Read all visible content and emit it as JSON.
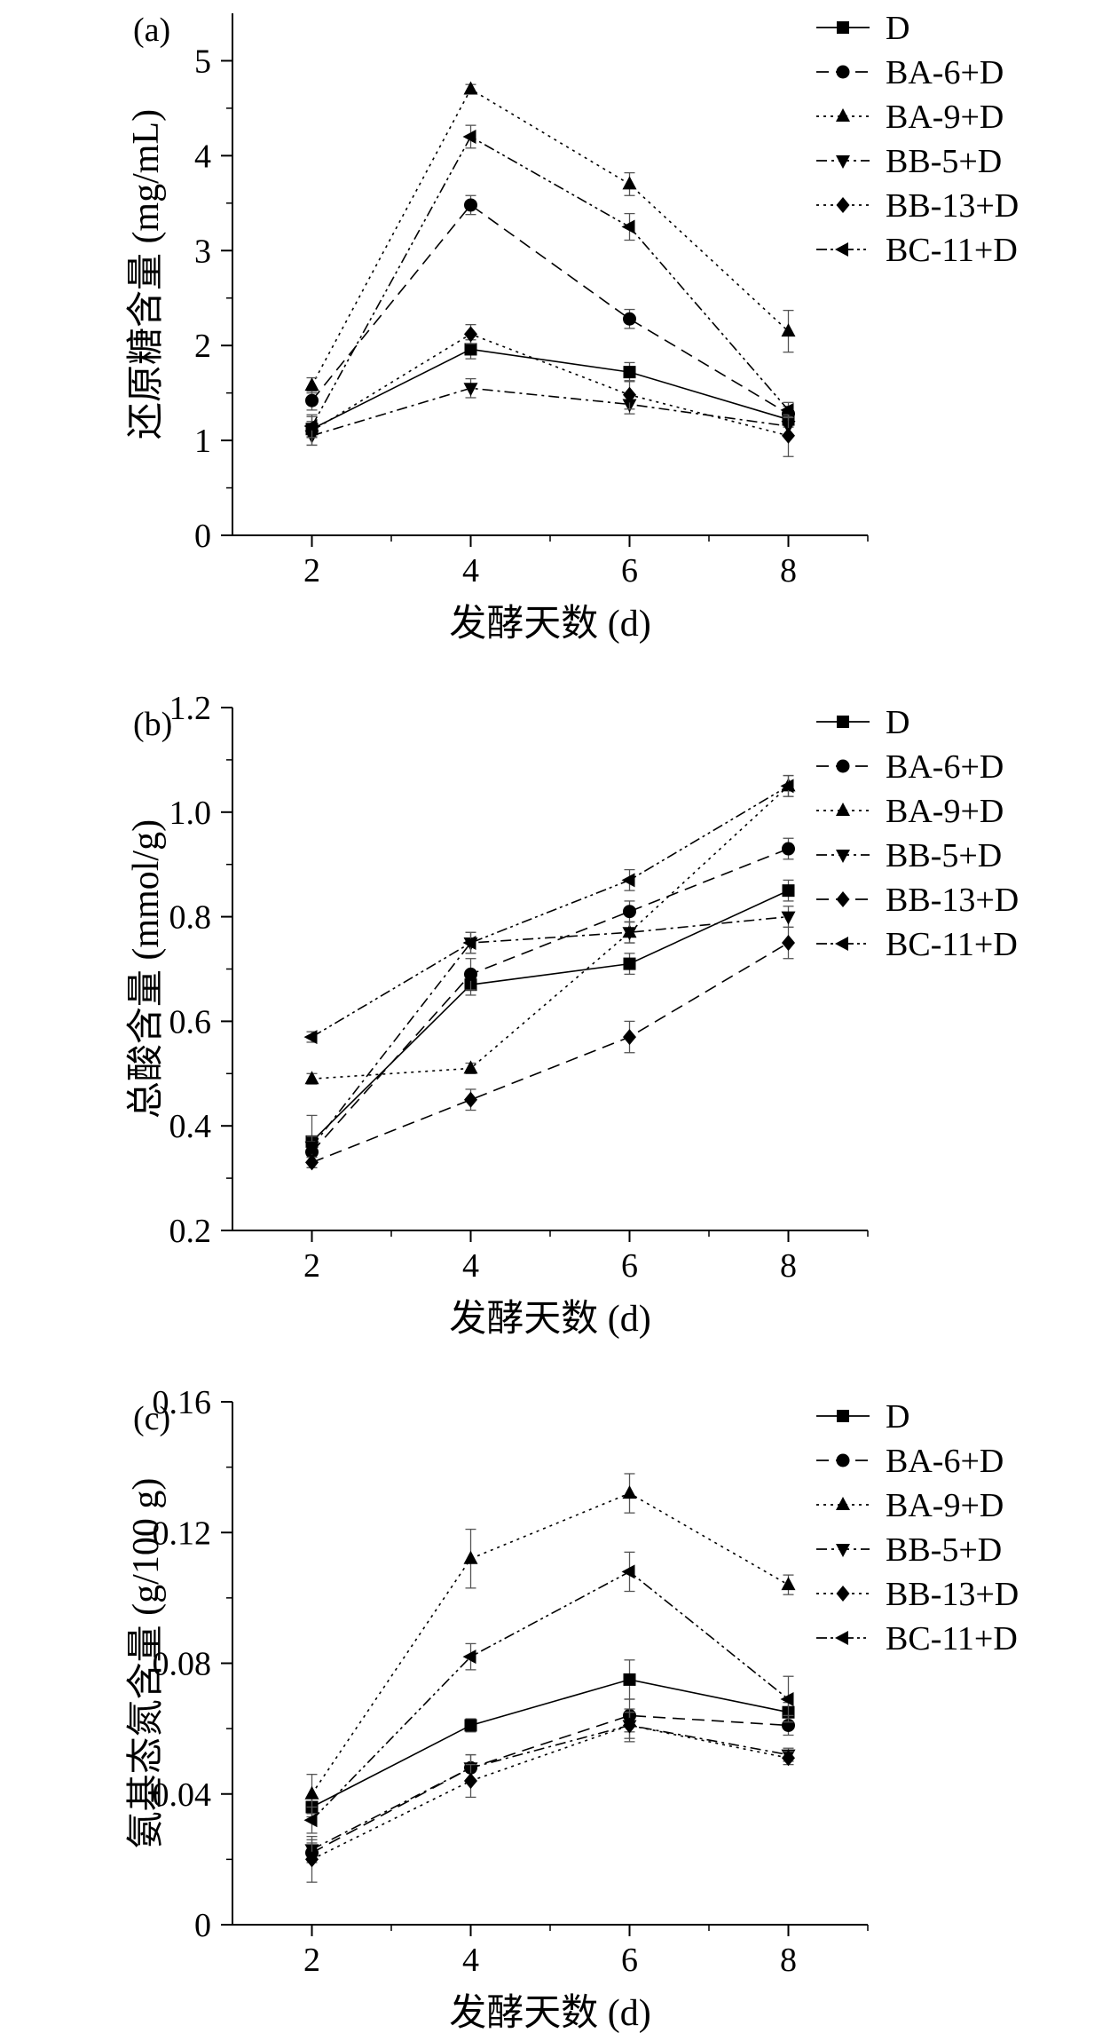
{
  "chart_data": [
    {
      "type": "line",
      "panel_label": "(a)",
      "xlabel": "发酵天数 (d)",
      "ylabel": "还原糖含量 (mg/mL)",
      "x": [
        2,
        4,
        6,
        8
      ],
      "xticks": [
        "2",
        "4",
        "6",
        "8"
      ],
      "xlim": [
        1,
        9
      ],
      "ylim": [
        0,
        5.5
      ],
      "yticks": [
        0,
        1,
        2,
        3,
        4,
        5
      ],
      "ytick_labels": [
        "0",
        "1",
        "2",
        "3",
        "4",
        "5"
      ],
      "legend_position": "top-right",
      "series": [
        {
          "name": "D",
          "marker": "square",
          "dash": "solid",
          "values": [
            1.12,
            1.96,
            1.72,
            1.22
          ],
          "errors": [
            0.08,
            0.1,
            0.1,
            0.08
          ]
        },
        {
          "name": "BA-6+D",
          "marker": "circle",
          "dash": "dashed",
          "values": [
            1.42,
            3.48,
            2.28,
            1.28
          ],
          "errors": [
            0.1,
            0.1,
            0.1,
            0.08
          ]
        },
        {
          "name": "BA-9+D",
          "marker": "triangle-up",
          "dash": "dotted",
          "values": [
            1.58,
            4.7,
            3.7,
            2.15
          ],
          "errors": [
            0.08,
            0.05,
            0.12,
            0.22
          ]
        },
        {
          "name": "BB-5+D",
          "marker": "triangle-down",
          "dash": "dashdot",
          "values": [
            1.05,
            1.55,
            1.38,
            1.15
          ],
          "errors": [
            0.1,
            0.1,
            0.1,
            0.1
          ]
        },
        {
          "name": "BB-13+D",
          "marker": "diamond",
          "dash": "dotted",
          "values": [
            1.1,
            2.12,
            1.48,
            1.05
          ],
          "errors": [
            0.15,
            0.1,
            0.15,
            0.22
          ]
        },
        {
          "name": "BC-11+D",
          "marker": "triangle-left",
          "dash": "dashdotdot",
          "values": [
            1.15,
            4.2,
            3.25,
            1.32
          ],
          "errors": [
            0.12,
            0.12,
            0.14,
            0.08
          ]
        }
      ]
    },
    {
      "type": "line",
      "panel_label": "(b)",
      "xlabel": "发酵天数 (d)",
      "ylabel": "总酸含量 (mmol/g)",
      "x": [
        2,
        4,
        6,
        8
      ],
      "xticks": [
        "2",
        "4",
        "6",
        "8"
      ],
      "xlim": [
        1,
        9
      ],
      "ylim": [
        0.2,
        1.2
      ],
      "yticks": [
        0.2,
        0.4,
        0.6,
        0.8,
        1.0,
        1.2
      ],
      "ytick_labels": [
        "0.2",
        "0.4",
        "0.6",
        "0.8",
        "1.0",
        "1.2"
      ],
      "legend_position": "top-right",
      "series": [
        {
          "name": "D",
          "marker": "square",
          "dash": "solid",
          "values": [
            0.37,
            0.67,
            0.71,
            0.85
          ],
          "errors": [
            0.05,
            0.02,
            0.02,
            0.02
          ]
        },
        {
          "name": "BA-6+D",
          "marker": "circle",
          "dash": "dashed",
          "values": [
            0.35,
            0.69,
            0.81,
            0.93
          ],
          "errors": [
            0.02,
            0.03,
            0.02,
            0.02
          ]
        },
        {
          "name": "BA-9+D",
          "marker": "triangle-up",
          "dash": "dotted",
          "values": [
            0.49,
            0.51,
            0.77,
            1.05
          ],
          "errors": [
            0.01,
            0.01,
            0.02,
            0.02
          ]
        },
        {
          "name": "BB-5+D",
          "marker": "triangle-down",
          "dash": "dashdot",
          "values": [
            0.36,
            0.75,
            0.77,
            0.8
          ],
          "errors": [
            0.02,
            0.02,
            0.02,
            0.02
          ]
        },
        {
          "name": "BB-13+D",
          "marker": "diamond",
          "dash": "dashed",
          "values": [
            0.33,
            0.45,
            0.57,
            0.75
          ],
          "errors": [
            0.01,
            0.02,
            0.03,
            0.03
          ]
        },
        {
          "name": "BC-11+D",
          "marker": "triangle-left",
          "dash": "dashdotdot",
          "values": [
            0.57,
            0.75,
            0.87,
            1.05
          ],
          "errors": [
            0.01,
            0.02,
            0.02,
            0.02
          ]
        }
      ]
    },
    {
      "type": "line",
      "panel_label": "(c)",
      "xlabel": "发酵天数 (d)",
      "ylabel": "氨基态氮含量 (g/100 g)",
      "x": [
        2,
        4,
        6,
        8
      ],
      "xticks": [
        "2",
        "4",
        "6",
        "8"
      ],
      "xlim": [
        1,
        9
      ],
      "ylim": [
        0,
        0.16
      ],
      "yticks": [
        0,
        0.04,
        0.08,
        0.12,
        0.16
      ],
      "ytick_labels": [
        "0",
        "0.04",
        "0.08",
        "0.12",
        "0.16"
      ],
      "legend_position": "top-right",
      "series": [
        {
          "name": "D",
          "marker": "square",
          "dash": "solid",
          "values": [
            0.036,
            0.061,
            0.075,
            0.065
          ],
          "errors": [
            0.003,
            0.002,
            0.006,
            0.003
          ]
        },
        {
          "name": "BA-6+D",
          "marker": "circle",
          "dash": "dashed",
          "values": [
            0.022,
            0.048,
            0.064,
            0.061
          ],
          "errors": [
            0.003,
            0.004,
            0.005,
            0.003
          ]
        },
        {
          "name": "BA-9+D",
          "marker": "triangle-up",
          "dash": "dotted",
          "values": [
            0.04,
            0.112,
            0.132,
            0.104
          ],
          "errors": [
            0.006,
            0.009,
            0.006,
            0.003
          ]
        },
        {
          "name": "BB-5+D",
          "marker": "triangle-down",
          "dash": "dashdot",
          "values": [
            0.023,
            0.048,
            0.061,
            0.052
          ],
          "errors": [
            0.003,
            0.004,
            0.005,
            0.002
          ]
        },
        {
          "name": "BB-13+D",
          "marker": "diamond",
          "dash": "dotted",
          "values": [
            0.02,
            0.044,
            0.061,
            0.051
          ],
          "errors": [
            0.007,
            0.005,
            0.004,
            0.002
          ]
        },
        {
          "name": "BC-11+D",
          "marker": "triangle-left",
          "dash": "dashdotdot",
          "values": [
            0.032,
            0.082,
            0.108,
            0.069
          ],
          "errors": [
            0.004,
            0.004,
            0.006,
            0.007
          ]
        }
      ]
    }
  ]
}
